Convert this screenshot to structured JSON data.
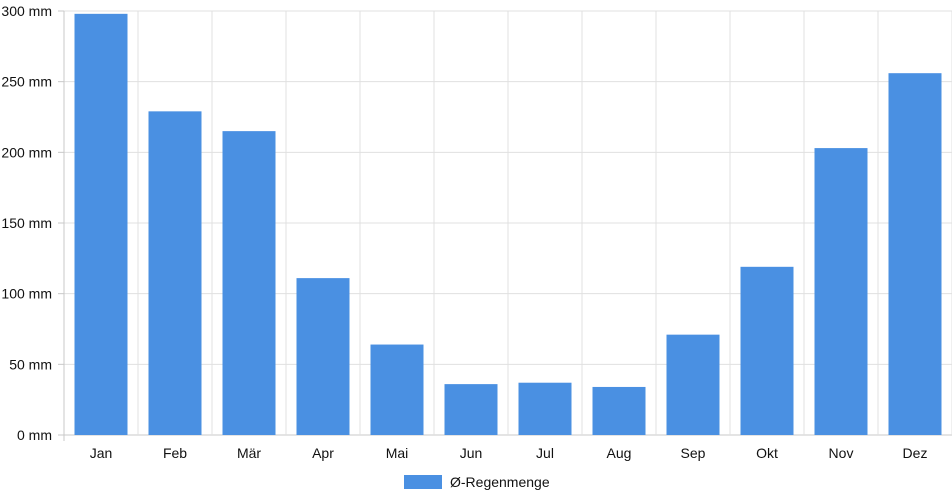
{
  "chart_data": {
    "type": "bar",
    "categories": [
      "Jan",
      "Feb",
      "Mär",
      "Apr",
      "Mai",
      "Jun",
      "Jul",
      "Aug",
      "Sep",
      "Okt",
      "Nov",
      "Dez"
    ],
    "series": [
      {
        "name": "Ø-Regenmenge",
        "values": [
          298,
          229,
          215,
          111,
          64,
          36,
          37,
          34,
          71,
          119,
          203,
          256
        ],
        "color": "#4a90e2"
      }
    ],
    "y_ticks": [
      "0 mm",
      "50 mm",
      "100 mm",
      "150 mm",
      "200 mm",
      "250 mm",
      "300 mm"
    ],
    "ylim": [
      0,
      300
    ],
    "grid": true,
    "legend_position": "bottom-center",
    "gridline_color": "#e0e0e0"
  }
}
